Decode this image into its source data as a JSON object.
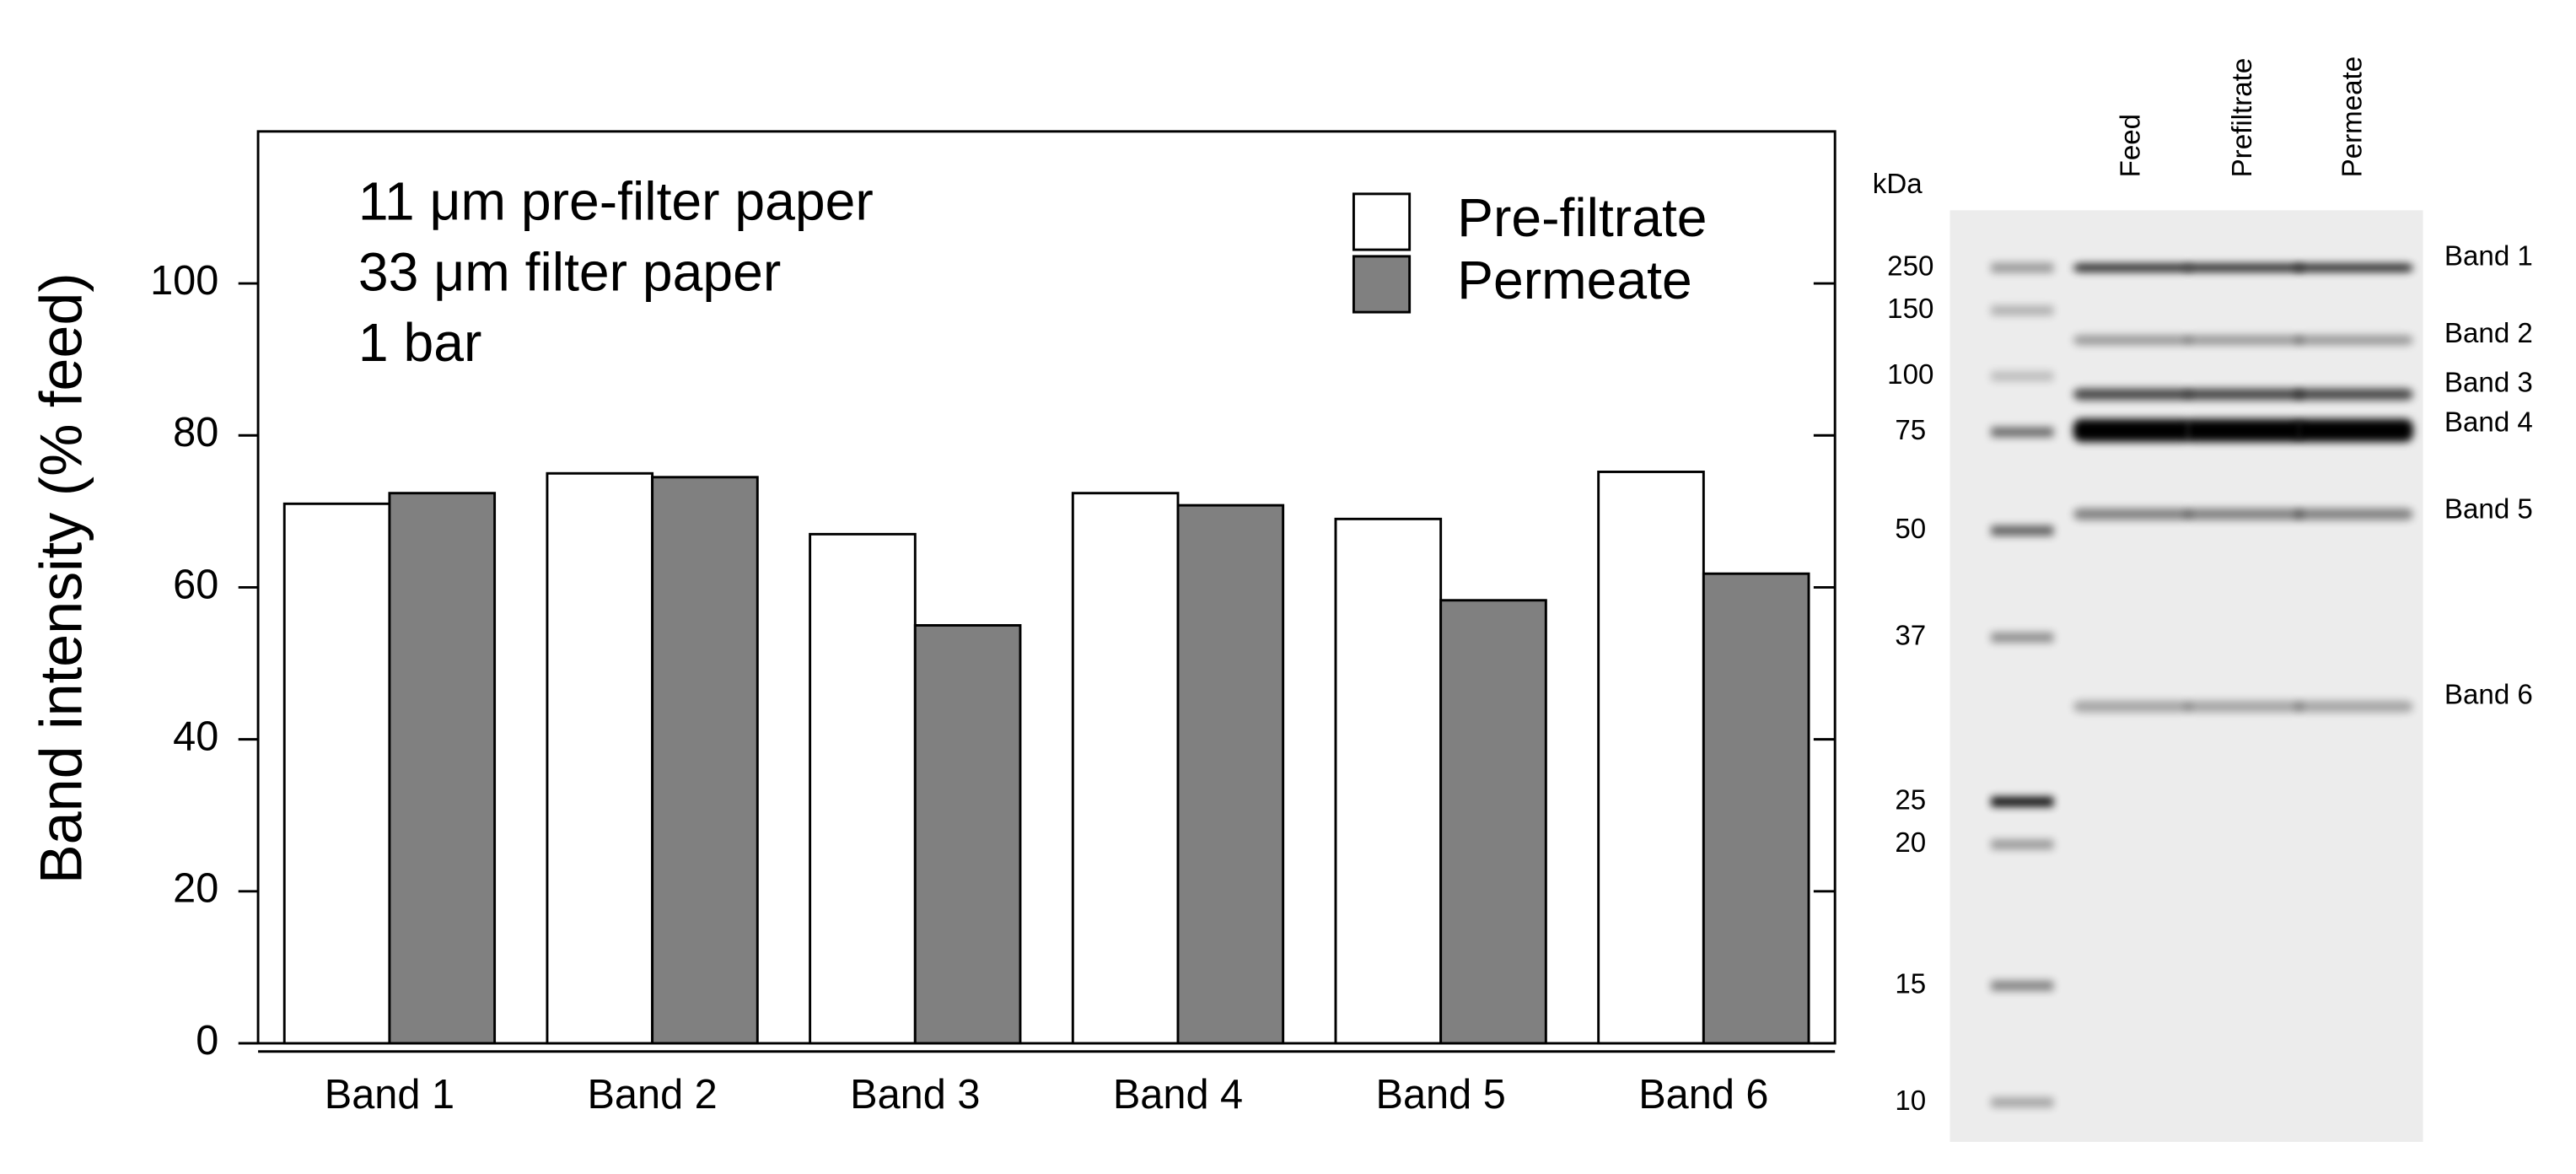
{
  "chart_data": {
    "type": "bar",
    "y_label": "Band intensity (% feed)",
    "annotations": [
      "11 μm pre-filter paper",
      "33 μm filter paper",
      "1 bar"
    ],
    "categories": [
      "Band 1",
      "Band 2",
      "Band 3",
      "Band 4",
      "Band 5",
      "Band 6"
    ],
    "series": [
      {
        "name": "Pre-filtrate",
        "color": "#ffffff",
        "values": [
          71,
          75,
          67,
          72.4,
          69,
          75.2
        ]
      },
      {
        "name": "Permeate",
        "color": "#808080",
        "values": [
          72.4,
          74.5,
          55,
          70.8,
          58.3,
          61.8
        ]
      }
    ],
    "ylim": [
      0,
      120
    ],
    "yticks": [
      0,
      20,
      40,
      60,
      80,
      100
    ],
    "legend": "upper right"
  },
  "gel": {
    "unit": "kDa",
    "markers": [
      "250",
      "150",
      "100",
      "75",
      "50",
      "37",
      "25",
      "20",
      "15",
      "10"
    ],
    "lanes": [
      "Feed",
      "Prefiltrate",
      "Permeate"
    ],
    "band_labels": [
      "Band 1",
      "Band 2",
      "Band 3",
      "Band 4",
      "Band 5",
      "Band 6"
    ]
  }
}
